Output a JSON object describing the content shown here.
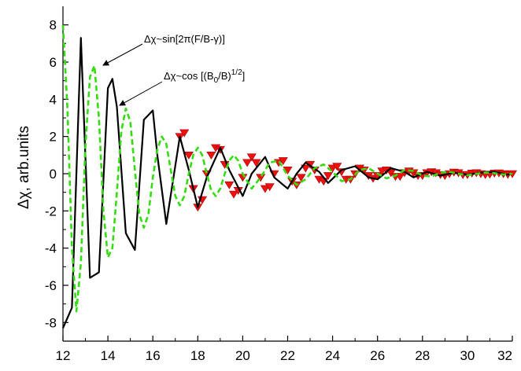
{
  "chart_data": {
    "type": "line",
    "title": "",
    "xlabel": "",
    "ylabel": "Δχ, arb.units",
    "xlim": [
      12,
      32
    ],
    "ylim": [
      -9,
      9
    ],
    "x_ticks": [
      12,
      14,
      16,
      18,
      20,
      22,
      24,
      26,
      28,
      30,
      32
    ],
    "y_ticks": [
      -8,
      -6,
      -4,
      -2,
      0,
      2,
      4,
      6,
      8
    ],
    "grid": false,
    "colors": {
      "black": "#000000",
      "green": "#33dd11",
      "red": "#ee1111"
    },
    "series": [
      {
        "style": "black-solid",
        "x": [
          12.0,
          12.4,
          12.8,
          13.2,
          13.6,
          14.0,
          14.2,
          14.4,
          14.8,
          15.2,
          15.6,
          16.0,
          16.2,
          16.6,
          17.2,
          17.6,
          18.0,
          18.4,
          19.0,
          19.4,
          20.0,
          20.4,
          21.0,
          21.4,
          22.0,
          22.4,
          22.8,
          23.4,
          23.8,
          24.4,
          25.0,
          25.6,
          26.0,
          26.6,
          27.2,
          27.6,
          28.2,
          28.8,
          29.4,
          30.0,
          30.6,
          31.2,
          31.8,
          32.0
        ],
        "y": [
          -8.3,
          -7.2,
          7.3,
          -5.6,
          -5.3,
          4.6,
          5.1,
          3.6,
          -3.2,
          -4.1,
          2.9,
          3.4,
          1.0,
          -2.7,
          2.0,
          0.2,
          -1.8,
          -0.2,
          1.4,
          0.2,
          -1.2,
          0.0,
          0.9,
          -0.2,
          -0.8,
          0.0,
          0.6,
          0.1,
          -0.5,
          0.2,
          0.4,
          -0.2,
          -0.3,
          0.3,
          0.1,
          -0.2,
          0.1,
          -0.1,
          0.05,
          -0.05,
          0.05,
          0.1,
          -0.05,
          0.0
        ]
      },
      {
        "style": "green-dashed",
        "x": [
          12.0,
          12.2,
          12.4,
          12.6,
          12.8,
          13.0,
          13.2,
          13.4,
          13.6,
          13.8,
          14.0,
          14.2,
          14.4,
          14.6,
          14.8,
          15.0,
          15.2,
          15.4,
          15.6,
          15.8,
          16.0,
          16.2,
          16.4,
          16.6,
          16.8,
          17.0,
          17.2,
          17.4,
          17.6,
          17.8,
          18.0,
          18.2,
          18.4,
          18.6,
          18.8,
          19.0,
          19.2,
          19.4,
          19.6,
          19.8,
          20.0,
          20.4,
          20.8,
          21.2,
          21.6,
          22.0,
          22.4,
          22.8,
          23.2,
          23.6,
          24.0,
          24.4,
          24.8,
          25.2,
          25.6,
          26.0,
          26.4,
          26.8,
          27.2,
          27.6,
          28.0,
          28.4,
          28.8,
          29.2,
          29.6,
          30.0,
          30.4,
          30.8,
          31.2,
          31.6,
          32.0
        ],
        "y": [
          8.0,
          3.5,
          -4.0,
          -7.4,
          -4.8,
          1.5,
          5.2,
          5.8,
          3.0,
          -2.0,
          -4.5,
          -4.0,
          -1.0,
          2.3,
          3.5,
          2.8,
          0.2,
          -2.2,
          -2.9,
          -2.2,
          -0.2,
          1.3,
          2.0,
          1.6,
          0.2,
          -1.2,
          -1.7,
          -1.2,
          0.0,
          1.0,
          1.4,
          1.0,
          0.0,
          -0.9,
          -1.2,
          -0.8,
          0.0,
          0.7,
          1.0,
          0.7,
          0.0,
          -0.8,
          -0.2,
          0.6,
          0.7,
          -0.1,
          -0.6,
          -0.3,
          0.3,
          0.5,
          0.1,
          -0.4,
          -0.3,
          0.2,
          0.3,
          0.0,
          -0.25,
          -0.1,
          0.2,
          0.15,
          -0.1,
          -0.15,
          0.05,
          0.1,
          0.0,
          -0.08,
          0.0,
          0.06,
          0.03,
          -0.04,
          0.0
        ]
      },
      {
        "style": "red-triangles",
        "x": [
          17.2,
          17.4,
          17.6,
          17.8,
          18.0,
          18.2,
          18.4,
          18.6,
          18.8,
          19.0,
          19.2,
          19.4,
          19.6,
          19.8,
          20.0,
          20.2,
          20.4,
          20.6,
          20.8,
          21.0,
          21.2,
          21.4,
          21.6,
          21.8,
          22.0,
          22.2,
          22.4,
          22.6,
          22.8,
          23.0,
          23.2,
          23.4,
          23.6,
          23.8,
          24.0,
          24.2,
          24.4,
          24.6,
          24.8,
          25.0,
          25.2,
          25.4,
          25.6,
          25.8,
          26.0,
          26.2,
          26.4,
          26.6,
          26.8,
          27.0,
          27.2,
          27.4,
          27.6,
          27.8,
          28.0,
          28.2,
          28.4,
          28.6,
          28.8,
          29.0,
          29.2,
          29.4,
          29.6,
          29.8,
          30.0,
          30.2,
          30.4,
          30.6,
          30.8,
          31.0,
          31.2,
          31.4,
          31.6,
          31.8,
          32.0
        ],
        "y": [
          2.0,
          2.2,
          1.0,
          -0.8,
          -1.8,
          -1.4,
          0.0,
          1.0,
          1.4,
          1.3,
          0.5,
          -0.6,
          -1.1,
          -0.9,
          -0.2,
          0.6,
          0.9,
          0.6,
          -0.2,
          -0.8,
          -0.7,
          0.0,
          0.6,
          0.7,
          0.2,
          -0.4,
          -0.6,
          -0.2,
          0.3,
          0.5,
          0.2,
          -0.3,
          -0.4,
          -0.1,
          0.3,
          0.4,
          0.1,
          -0.3,
          -0.3,
          0.0,
          0.3,
          0.2,
          -0.1,
          -0.25,
          -0.1,
          0.15,
          0.2,
          0.05,
          -0.15,
          -0.15,
          0.05,
          0.15,
          0.05,
          -0.1,
          -0.1,
          0.05,
          0.1,
          0.05,
          -0.05,
          -0.1,
          0.0,
          0.08,
          0.05,
          -0.05,
          -0.05,
          0.03,
          0.05,
          0.0,
          -0.05,
          -0.03,
          0.03,
          0.04,
          0.0,
          -0.04,
          0.0
        ]
      }
    ],
    "annotations": [
      {
        "text_main": "Δχ~sin[2π(F/B-γ)]",
        "arrow_target": [
          13.65,
          5.8
        ]
      },
      {
        "text_main": "Δχ~cos [(B",
        "sub": "0",
        "text_mid": "/B)",
        "sup": "1/2",
        "text_end": "]",
        "arrow_target": [
          14.4,
          4.2
        ]
      }
    ]
  }
}
